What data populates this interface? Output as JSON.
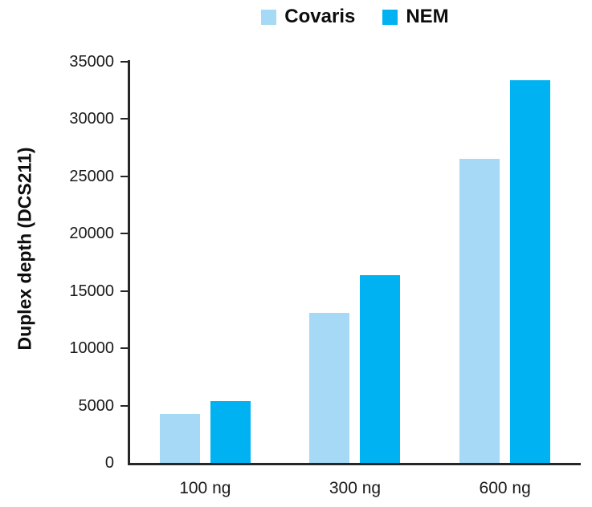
{
  "chart_data": {
    "type": "bar",
    "title": "",
    "categories": [
      "100 ng",
      "300 ng",
      "600 ng"
    ],
    "series": [
      {
        "name": "Covaris",
        "color": "#A6D9F5",
        "values": [
          4300,
          13100,
          26500
        ]
      },
      {
        "name": "NEM",
        "color": "#00B2F2",
        "values": [
          5400,
          16400,
          33400
        ]
      }
    ],
    "xlabel": "",
    "ylabel": "Duplex depth (DCS211)",
    "ylim": [
      0,
      35000
    ],
    "yticks": [
      0,
      5000,
      10000,
      15000,
      20000,
      25000,
      30000,
      35000
    ],
    "grid": false,
    "legend_position": "top-center",
    "colors": {
      "axis": "#262626",
      "tick_text": "#1a1a1a",
      "legend_text": "#0d0d0d"
    }
  }
}
